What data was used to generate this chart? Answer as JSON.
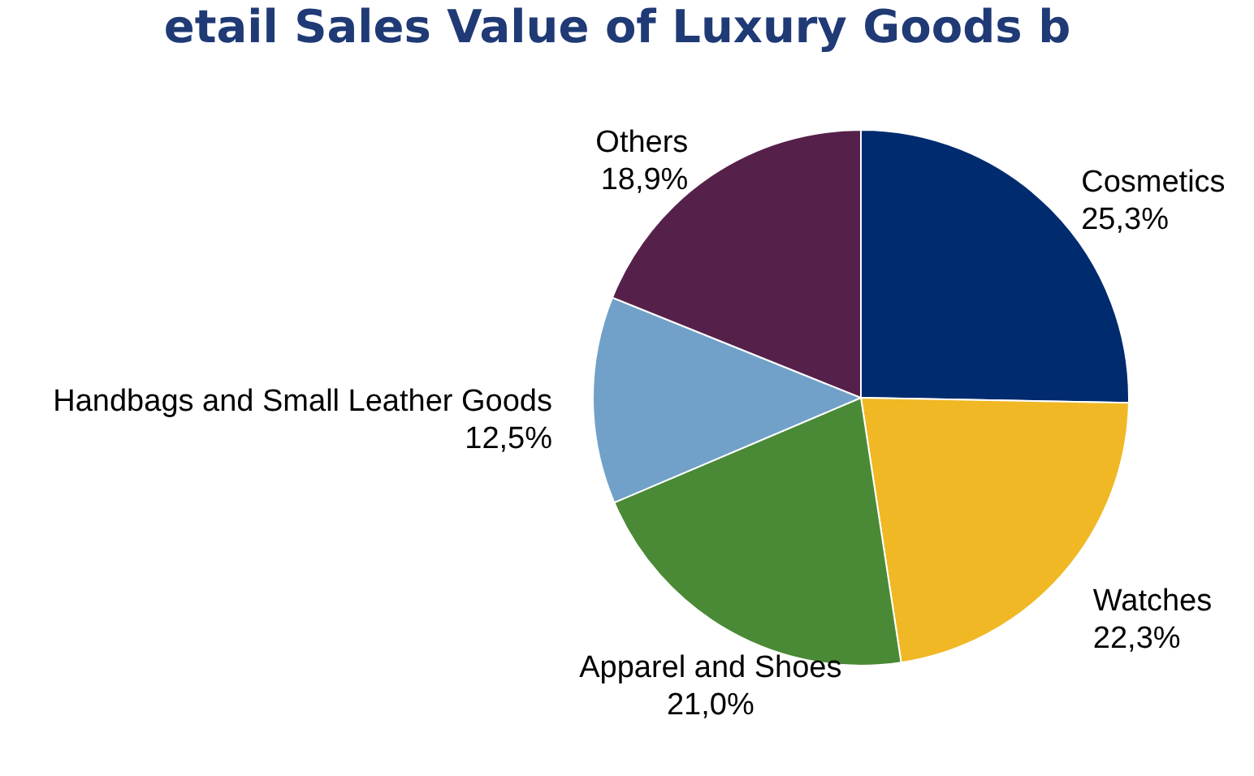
{
  "chart_data": {
    "type": "pie",
    "title": "etail Sales Value of Luxury Goods b",
    "categories": [
      "Cosmetics",
      "Watches",
      "Apparel and Shoes",
      "Handbags and Small Leather Goods",
      "Others"
    ],
    "values": [
      25.3,
      22.3,
      21.0,
      12.5,
      18.9
    ],
    "value_labels": [
      "25,3%",
      "22,3%",
      "21,0%",
      "12,5%",
      "18,9%"
    ],
    "colors": [
      "#002b6e",
      "#f0b825",
      "#4a8a36",
      "#71a1c8",
      "#55214b"
    ]
  }
}
